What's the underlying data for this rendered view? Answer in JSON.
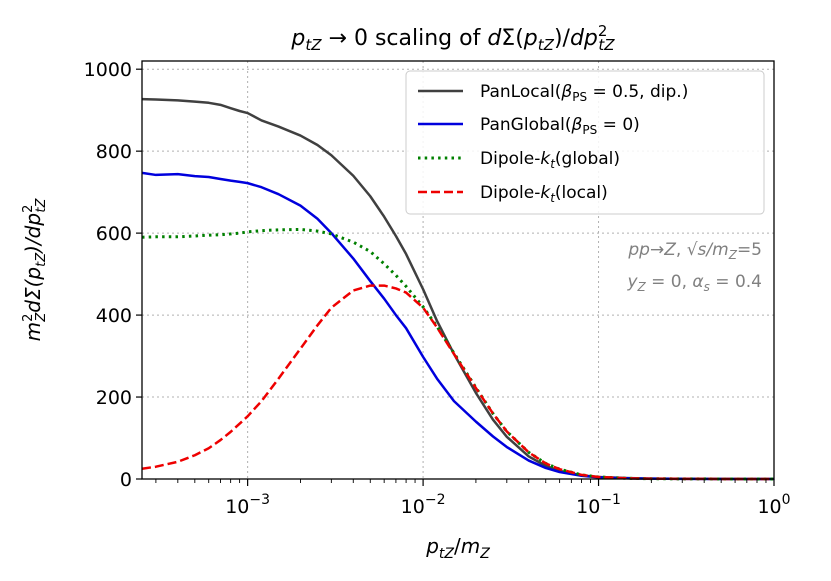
{
  "chart_data": {
    "type": "line",
    "title": "p_tZ → 0 scaling of dΣ(p_tZ)/dp_tZ²",
    "title_parts": {
      "pre": "p",
      "sub1": "tZ",
      "mid": " → 0 scaling of ",
      "d": "d",
      "Sigma": "Σ",
      "paren_open": "(",
      "p2": "p",
      "sub2": "tZ",
      "paren_close": ")/",
      "dp": "dp",
      "sup": "2",
      "sub3": "tZ"
    },
    "xlabel": "p_tZ/m_Z",
    "xlabel_parts": {
      "p": "p",
      "sub1": "tZ",
      "slash": "/",
      "m": "m",
      "sub2": "Z"
    },
    "ylabel": "m_Z² dΣ(p_tZ)/dp_tZ²",
    "ylabel_parts": {
      "m": "m",
      "sup": "2",
      "sub": "Z",
      "rest": "dΣ(p",
      "sub2": "tZ",
      "rest2": ")/dp",
      "sup3": "2",
      "sub3": "tZ"
    },
    "xscale": "log",
    "xlim": [
      0.00025,
      1
    ],
    "ylim": [
      0,
      1020
    ],
    "grid": true,
    "yticks": [
      0,
      200,
      400,
      600,
      800,
      1000
    ],
    "ytick_labels": [
      "0",
      "200",
      "400",
      "600",
      "800",
      "1000"
    ],
    "xticks": [
      0.001,
      0.01,
      0.1,
      1
    ],
    "xtick_labels": [
      {
        "base": "10",
        "exp": "−3"
      },
      {
        "base": "10",
        "exp": "−2"
      },
      {
        "base": "10",
        "exp": "−1"
      },
      {
        "base": "10",
        "exp": "0"
      }
    ],
    "legend_position": "top-right",
    "annotation_lines": [
      "pp→Z, √s/m_Z=5",
      "y_Z = 0, α_s = 0.4"
    ],
    "annotation_parts": {
      "l1_a": "pp",
      "l1_b": "→",
      "l1_c": "Z",
      "l1_d": ", ",
      "l1_e": "√s",
      "l1_f": "/m",
      "l1_g": "Z",
      "l1_h": "=5",
      "l2_a": "y",
      "l2_b": "Z",
      "l2_c": " = 0, ",
      "l2_d": "α",
      "l2_e": "s",
      "l2_f": " = 0.4"
    },
    "series": [
      {
        "name": "PanLocal(β_PS = 0.5, dip.)",
        "legend_parts": {
          "pre": "PanLocal(",
          "beta": "β",
          "sub": "PS",
          "post": " = 0.5, dip.)"
        },
        "color": "#404040",
        "dash": "solid",
        "x": [
          0.00025,
          0.0003,
          0.0004,
          0.0005,
          0.0006,
          0.0007,
          0.0008,
          0.0009,
          0.001,
          0.0012,
          0.0015,
          0.002,
          0.0025,
          0.003,
          0.004,
          0.005,
          0.006,
          0.007,
          0.008,
          0.01,
          0.012,
          0.015,
          0.02,
          0.025,
          0.03,
          0.04,
          0.05,
          0.06,
          0.08,
          0.1,
          0.15,
          0.2,
          0.3,
          0.5,
          0.7,
          1.0
        ],
        "y": [
          927,
          926,
          924,
          921,
          918,
          913,
          905,
          898,
          893,
          875,
          860,
          838,
          815,
          790,
          740,
          690,
          640,
          593,
          549,
          463,
          386,
          305,
          210,
          145,
          103,
          55,
          32,
          20,
          9,
          5,
          2,
          1,
          0.5,
          0.2,
          0.1,
          0
        ]
      },
      {
        "name": "PanGlobal(β_PS = 0)",
        "legend_parts": {
          "pre": "PanGlobal(",
          "beta": "β",
          "sub": "PS",
          "post": " = 0)"
        },
        "color": "#0000dd",
        "dash": "solid",
        "x": [
          0.00025,
          0.0003,
          0.0004,
          0.0005,
          0.0006,
          0.0007,
          0.0008,
          0.0009,
          0.001,
          0.0012,
          0.0015,
          0.002,
          0.0025,
          0.003,
          0.004,
          0.005,
          0.006,
          0.007,
          0.008,
          0.01,
          0.012,
          0.015,
          0.02,
          0.025,
          0.03,
          0.04,
          0.05,
          0.06,
          0.08,
          0.1,
          0.15,
          0.2,
          0.3,
          0.5,
          0.7,
          1.0
        ],
        "y": [
          747,
          742,
          744,
          739,
          737,
          732,
          728,
          725,
          722,
          712,
          695,
          667,
          635,
          600,
          538,
          483,
          440,
          400,
          368,
          298,
          245,
          190,
          140,
          104,
          78,
          45,
          27,
          17,
          8,
          4,
          1.5,
          0.8,
          0.3,
          0.1,
          0.05,
          0
        ]
      },
      {
        "name": "Dipole-k_t(global)",
        "legend_parts": {
          "pre": "Dipole-",
          "k": "k",
          "sub": "t",
          "post": "(global)"
        },
        "color": "#008000",
        "dash": "dotted",
        "x": [
          0.00025,
          0.0003,
          0.0004,
          0.0005,
          0.0006,
          0.0007,
          0.0008,
          0.0009,
          0.001,
          0.0012,
          0.0015,
          0.002,
          0.0025,
          0.003,
          0.004,
          0.005,
          0.006,
          0.007,
          0.008,
          0.01,
          0.012,
          0.015,
          0.02,
          0.025,
          0.03,
          0.04,
          0.05,
          0.06,
          0.08,
          0.1,
          0.15,
          0.2,
          0.3,
          0.5,
          0.7,
          1.0
        ],
        "y": [
          590,
          591,
          591,
          593,
          595,
          596,
          598,
          600,
          603,
          606,
          608,
          609,
          605,
          598,
          578,
          555,
          525,
          497,
          470,
          420,
          372,
          307,
          223,
          160,
          116,
          65,
          38,
          24,
          10,
          5,
          1.5,
          0.7,
          0.3,
          0.1,
          0.05,
          0
        ]
      },
      {
        "name": "Dipole-k_t(local)",
        "legend_parts": {
          "pre": "Dipole-",
          "k": "k",
          "sub": "t",
          "post": "(local)"
        },
        "color": "#ee0000",
        "dash": "dashed",
        "x": [
          0.00025,
          0.0003,
          0.0004,
          0.0005,
          0.0006,
          0.0007,
          0.0008,
          0.0009,
          0.001,
          0.0012,
          0.0015,
          0.002,
          0.0025,
          0.003,
          0.004,
          0.005,
          0.006,
          0.007,
          0.008,
          0.01,
          0.012,
          0.015,
          0.02,
          0.025,
          0.03,
          0.04,
          0.05,
          0.06,
          0.08,
          0.1,
          0.15,
          0.2,
          0.3,
          0.5,
          0.7,
          1.0
        ],
        "y": [
          25,
          30,
          42,
          58,
          75,
          95,
          115,
          135,
          153,
          190,
          245,
          318,
          375,
          418,
          460,
          472,
          472,
          465,
          455,
          418,
          370,
          305,
          222,
          160,
          116,
          65,
          38,
          24,
          10,
          5,
          1.5,
          0.7,
          0.3,
          0.1,
          0.05,
          0
        ]
      }
    ]
  }
}
